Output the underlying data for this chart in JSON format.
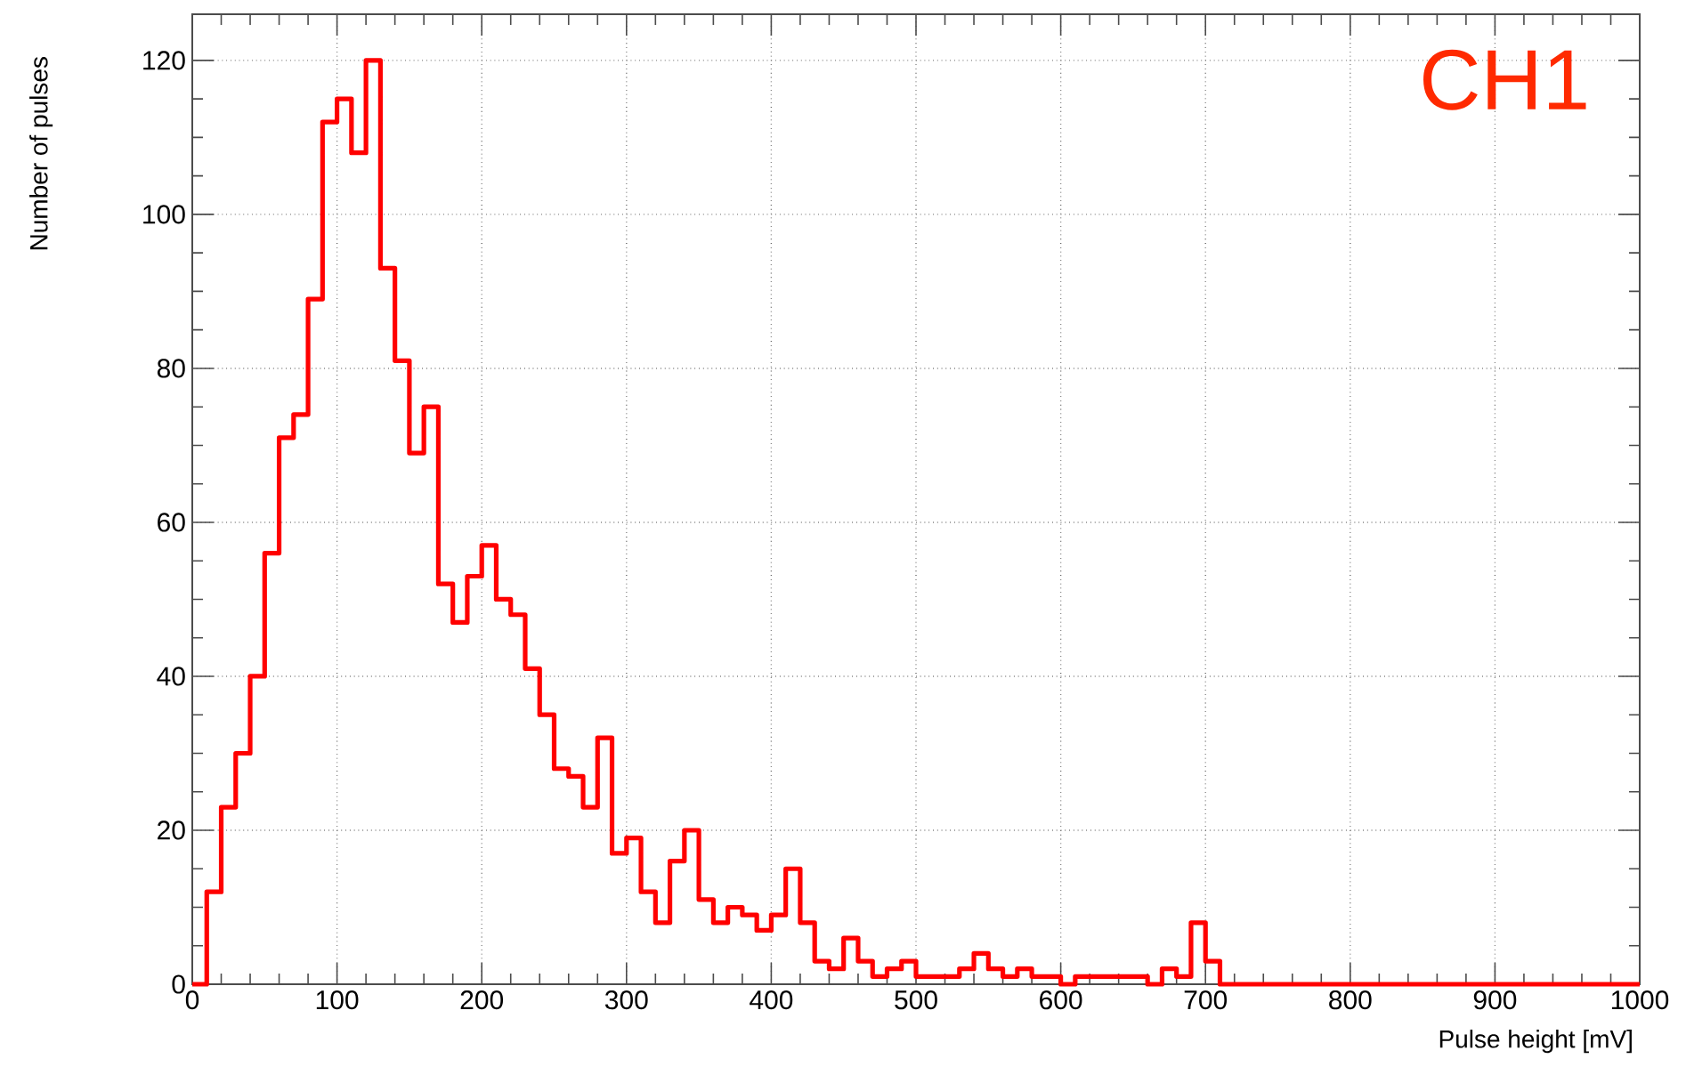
{
  "chart_data": {
    "type": "histogram",
    "xlabel": "Pulse height [mV]",
    "ylabel": "Number of pulses",
    "annotations": [
      "CH1"
    ],
    "bins": [
      0,
      10,
      20,
      30,
      40,
      50,
      60,
      70,
      80,
      90,
      100,
      110,
      120,
      130,
      140,
      150,
      160,
      170,
      180,
      190,
      200,
      210,
      220,
      230,
      240,
      250,
      260,
      270,
      280,
      290,
      300,
      310,
      320,
      330,
      340,
      350,
      360,
      370,
      380,
      390,
      400,
      410,
      420,
      430,
      440,
      450,
      460,
      470,
      480,
      490,
      500,
      510,
      520,
      530,
      540,
      550,
      560,
      570,
      580,
      590,
      600,
      610,
      620,
      630,
      640,
      650,
      660,
      670,
      680,
      690,
      700,
      710,
      720,
      730,
      740,
      750,
      760,
      770,
      780,
      790,
      800,
      810,
      820,
      830,
      840,
      850,
      860,
      870,
      880,
      890,
      900,
      910,
      920,
      930,
      940,
      950,
      960,
      970,
      980,
      990,
      1000
    ],
    "values": [
      0,
      12,
      23,
      30,
      40,
      56,
      71,
      74,
      89,
      112,
      115,
      108,
      120,
      93,
      81,
      69,
      75,
      52,
      47,
      53,
      57,
      50,
      48,
      41,
      35,
      28,
      27,
      23,
      32,
      17,
      19,
      12,
      8,
      16,
      20,
      11,
      8,
      10,
      9,
      7,
      9,
      15,
      8,
      3,
      2,
      6,
      3,
      1,
      2,
      3,
      1,
      1,
      1,
      2,
      4,
      2,
      1,
      2,
      1,
      1,
      0,
      1,
      1,
      1,
      1,
      1,
      0,
      2,
      1,
      8,
      3,
      0,
      0,
      0,
      0,
      0,
      0,
      0,
      0,
      0,
      0,
      0,
      0,
      0,
      0,
      0,
      0,
      0,
      0,
      0,
      0,
      0,
      0,
      0,
      0,
      0,
      0,
      0,
      0,
      0
    ],
    "color": "#ff0000",
    "xlim": [
      0,
      1000
    ],
    "ylim": [
      0,
      126
    ],
    "xticks": [
      0,
      100,
      200,
      300,
      400,
      500,
      600,
      700,
      800,
      900,
      1000
    ],
    "yticks": [
      0,
      20,
      40,
      60,
      80,
      100,
      120
    ],
    "grid": true
  }
}
